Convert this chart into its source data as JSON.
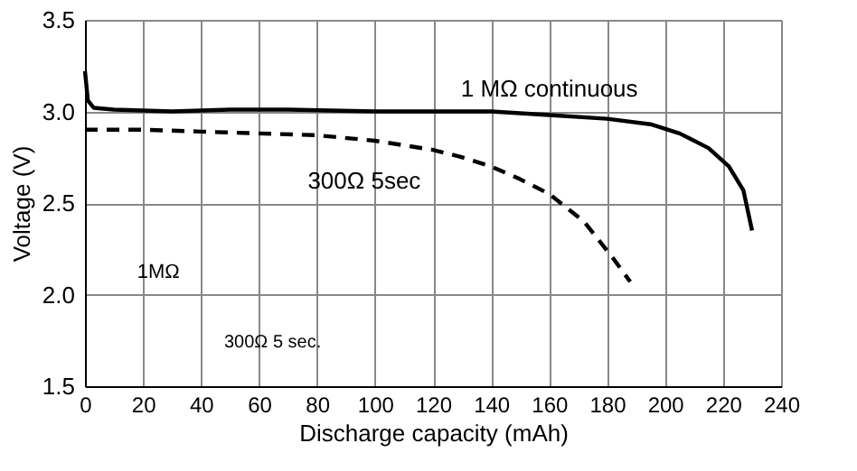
{
  "chart_data": {
    "type": "line",
    "xlabel": "Discharge capacity (mAh)",
    "ylabel": "Voltage (V)",
    "xlim": [
      0,
      240
    ],
    "xticks": [
      0,
      20,
      40,
      60,
      80,
      100,
      120,
      140,
      160,
      180,
      200,
      220,
      240
    ],
    "ylim": [
      1.5,
      3.5
    ],
    "yticks": [
      {
        "value": 1.5,
        "label": "1.5"
      },
      {
        "value": 2.0,
        "label": "2.0"
      },
      {
        "value": 2.5,
        "label": "2.5"
      },
      {
        "value": 3.0,
        "label": "3.0"
      },
      {
        "value": 3.5,
        "label": "3.5"
      }
    ],
    "grid": true,
    "legend": false,
    "marker": "none",
    "series": [
      {
        "name": "1 MΩ continuous",
        "color": "#000000",
        "line_style": "solid",
        "x": [
          0,
          1,
          3,
          10,
          30,
          50,
          70,
          100,
          140,
          160,
          180,
          195,
          205,
          215,
          222,
          227,
          230
        ],
        "values": [
          3.22,
          3.06,
          3.02,
          3.01,
          3.0,
          3.01,
          3.01,
          3.0,
          3.0,
          2.98,
          2.96,
          2.93,
          2.88,
          2.8,
          2.7,
          2.57,
          2.35
        ]
      },
      {
        "name": "300Ω 5sec",
        "color": "#000000",
        "line_style": "dashed",
        "x": [
          0,
          20,
          40,
          60,
          80,
          100,
          120,
          130,
          140,
          150,
          160,
          172,
          182,
          188
        ],
        "values": [
          2.9,
          2.9,
          2.89,
          2.88,
          2.87,
          2.84,
          2.79,
          2.75,
          2.7,
          2.63,
          2.55,
          2.4,
          2.2,
          2.07
        ]
      }
    ],
    "annotations": [
      "1MΩ",
      "300Ω 5 sec."
    ]
  }
}
